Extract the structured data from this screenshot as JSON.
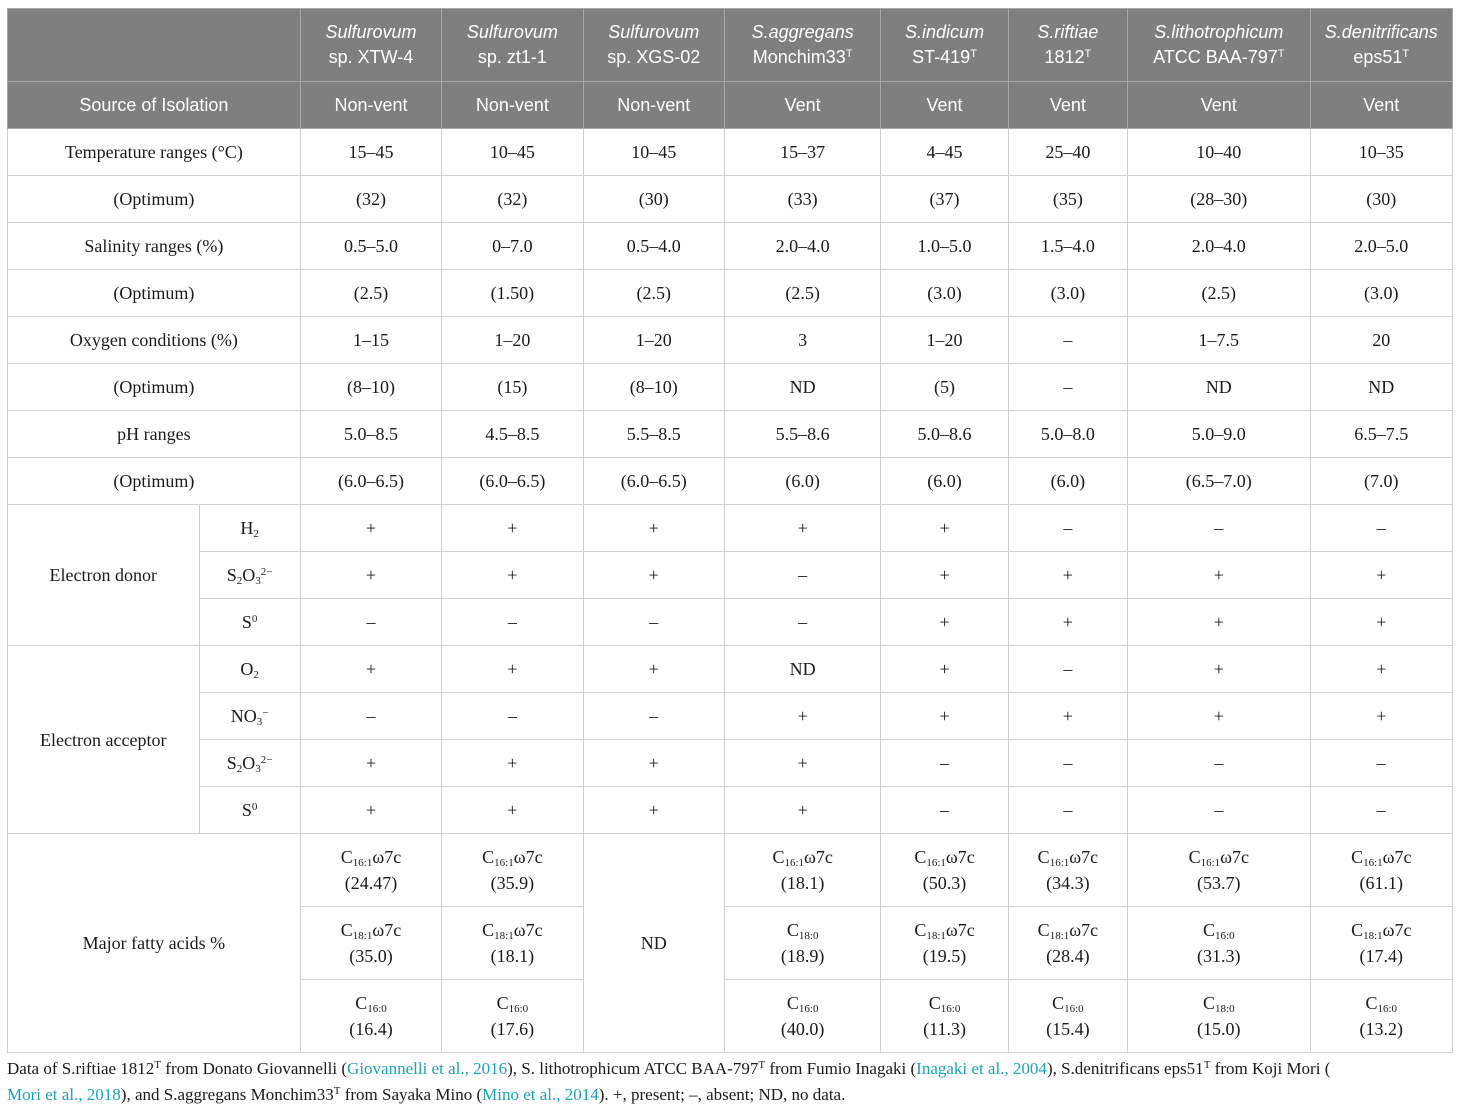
{
  "table": {
    "header": {
      "species": [
        {
          "name": "Sulfurovum",
          "strain": "sp. XTW-4",
          "sup": "",
          "italic_name": true
        },
        {
          "name": "Sulfurovum",
          "strain": "sp. zt1-1",
          "sup": "",
          "italic_name": true
        },
        {
          "name": "Sulfurovum",
          "strain": "sp. XGS-02",
          "sup": "",
          "italic_name": true
        },
        {
          "name": "S.aggregans",
          "strain": "Monchim33",
          "sup": "T",
          "italic_name": true
        },
        {
          "name": "S.indicum",
          "strain": "ST-419",
          "sup": "T",
          "italic_name": true
        },
        {
          "name": "S.riftiae",
          "strain": "1812",
          "sup": "T",
          "italic_name": true
        },
        {
          "name": "S.lithotrophicum",
          "strain": "ATCC BAA-797",
          "sup": "T",
          "italic_name": true
        },
        {
          "name": "S.denitrificans",
          "strain": "eps51",
          "sup": "T",
          "italic_name": true
        }
      ],
      "source_label": "Source of Isolation",
      "source_values": [
        "Non-vent",
        "Non-vent",
        "Non-vent",
        "Vent",
        "Vent",
        "Vent",
        "Vent",
        "Vent"
      ]
    },
    "rows": {
      "temp": {
        "label": "Temperature ranges (°C)",
        "values": [
          "15–45",
          "10–45",
          "10–45",
          "15–37",
          "4–45",
          "25–40",
          "10–40",
          "10–35"
        ]
      },
      "temp_opt": {
        "label": "(Optimum)",
        "values": [
          "(32)",
          "(32)",
          "(30)",
          "(33)",
          "(37)",
          "(35)",
          "(28–30)",
          "(30)"
        ]
      },
      "sal": {
        "label": "Salinity ranges (%)",
        "values": [
          "0.5–5.0",
          "0–7.0",
          "0.5–4.0",
          "2.0–4.0",
          "1.0–5.0",
          "1.5–4.0",
          "2.0–4.0",
          "2.0–5.0"
        ]
      },
      "sal_opt": {
        "label": "(Optimum)",
        "values": [
          "(2.5)",
          "(1.50)",
          "(2.5)",
          "(2.5)",
          "(3.0)",
          "(3.0)",
          "(2.5)",
          "(3.0)"
        ]
      },
      "oxy": {
        "label": "Oxygen conditions (%)",
        "values": [
          "1–15",
          "1–20",
          "1–20",
          "3",
          "1–20",
          "–",
          "1–7.5",
          "20"
        ]
      },
      "oxy_opt": {
        "label": "(Optimum)",
        "values": [
          "(8–10)",
          "(15)",
          "(8–10)",
          "ND",
          "(5)",
          "–",
          "ND",
          "ND"
        ]
      },
      "ph": {
        "label": "pH ranges",
        "values": [
          "5.0–8.5",
          "4.5–8.5",
          "5.5–8.5",
          "5.5–8.6",
          "5.0–8.6",
          "5.0–8.0",
          "5.0–9.0",
          "6.5–7.5"
        ]
      },
      "ph_opt": {
        "label": "(Optimum)",
        "values": [
          "(6.0–6.5)",
          "(6.0–6.5)",
          "(6.0–6.5)",
          "(6.0)",
          "(6.0)",
          "(6.0)",
          "(6.5–7.0)",
          "(7.0)"
        ]
      }
    },
    "donor": {
      "label": "Electron donor",
      "subs": [
        {
          "parts": [
            [
              "H",
              ""
            ],
            [
              "2",
              "sub"
            ]
          ],
          "values": [
            "+",
            "+",
            "+",
            "+",
            "+",
            "–",
            "–",
            "–"
          ]
        },
        {
          "parts": [
            [
              "S",
              ""
            ],
            [
              "2",
              "sub"
            ],
            [
              "O",
              ""
            ],
            [
              "3",
              "sub"
            ],
            [
              "2−",
              "sup"
            ]
          ],
          "values": [
            "+",
            "+",
            "+",
            "–",
            "+",
            "+",
            "+",
            "+"
          ]
        },
        {
          "parts": [
            [
              "S",
              ""
            ],
            [
              "0",
              "sup"
            ]
          ],
          "values": [
            "–",
            "–",
            "–",
            "–",
            "+",
            "+",
            "+",
            "+"
          ]
        }
      ]
    },
    "acceptor": {
      "label": "Electron acceptor",
      "subs": [
        {
          "parts": [
            [
              "O",
              ""
            ],
            [
              "2",
              "sub"
            ]
          ],
          "values": [
            "+",
            "+",
            "+",
            "ND",
            "+",
            "–",
            "+",
            "+"
          ]
        },
        {
          "parts": [
            [
              "NO",
              ""
            ],
            [
              "3",
              "sub"
            ],
            [
              "−",
              "sup"
            ]
          ],
          "values": [
            "–",
            "–",
            "–",
            "+",
            "+",
            "+",
            "+",
            "+"
          ]
        },
        {
          "parts": [
            [
              "S",
              ""
            ],
            [
              "2",
              "sub"
            ],
            [
              "O",
              ""
            ],
            [
              "3",
              "sub"
            ],
            [
              "2−",
              "sup"
            ]
          ],
          "values": [
            "+",
            "+",
            "+",
            "+",
            "–",
            "–",
            "–",
            "–"
          ]
        },
        {
          "parts": [
            [
              "S",
              ""
            ],
            [
              "0",
              "sup"
            ]
          ],
          "values": [
            "+",
            "+",
            "+",
            "+",
            "–",
            "–",
            "–",
            "–"
          ]
        }
      ]
    },
    "fatty": {
      "label": "Major fatty acids %",
      "nd": "ND",
      "cols": [
        [
          {
            "c": "16:1",
            "suffix": "ω7c",
            "v": "(24.47)"
          },
          {
            "c": "18:1",
            "suffix": "ω7c",
            "v": "(35.0)"
          },
          {
            "c": "16:0",
            "suffix": "",
            "v": "(16.4)"
          }
        ],
        [
          {
            "c": "16:1",
            "suffix": "ω7c",
            "v": "(35.9)"
          },
          {
            "c": "18:1",
            "suffix": "ω7c",
            "v": "(18.1)"
          },
          {
            "c": "16:0",
            "suffix": "",
            "v": "(17.6)"
          }
        ],
        null,
        [
          {
            "c": "16:1",
            "suffix": "ω7c",
            "v": "(18.1)"
          },
          {
            "c": "18:0",
            "suffix": "",
            "v": "(18.9)"
          },
          {
            "c": "16:0",
            "suffix": "",
            "v": "(40.0)"
          }
        ],
        [
          {
            "c": "16:1",
            "suffix": "ω7c",
            "v": "(50.3)"
          },
          {
            "c": "18:1",
            "suffix": "ω7c",
            "v": "(19.5)"
          },
          {
            "c": "16:0",
            "suffix": "",
            "v": "(11.3)"
          }
        ],
        [
          {
            "c": "16:1",
            "suffix": "ω7c",
            "v": "(34.3)"
          },
          {
            "c": "18:1",
            "suffix": "ω7c",
            "v": "(28.4)"
          },
          {
            "c": "16:0",
            "suffix": "",
            "v": "(15.4)"
          }
        ],
        [
          {
            "c": "16:1",
            "suffix": "ω7c",
            "v": "(53.7)"
          },
          {
            "c": "16:0",
            "suffix": "",
            "v": "(31.3)"
          },
          {
            "c": "18:0",
            "suffix": "",
            "v": "(15.0)"
          }
        ],
        [
          {
            "c": "16:1",
            "suffix": "ω7c",
            "v": "(61.1)"
          },
          {
            "c": "18:1",
            "suffix": "ω7c",
            "v": "(17.4)"
          },
          {
            "c": "16:0",
            "suffix": "",
            "v": "(13.2)"
          }
        ]
      ]
    }
  },
  "footnote": {
    "t1": "Data of S.riftiae 1812",
    "sup1": "T",
    "t2": " from Donato Giovannelli (",
    "l1": "Giovannelli et al., 2016",
    "t3": "), S. lithotrophicum ATCC BAA-797",
    "sup2": "T",
    "t4": " from Fumio Inagaki (",
    "l2": "Inagaki et al., 2004",
    "t5": "), S.denitrificans eps51",
    "sup3": "T",
    "t6": " from Koji Mori (",
    "l3": "Mori et al., 2018",
    "t7": "), and S.aggregans Monchim33",
    "sup4": "T",
    "t8": " from Sayaka Mino (",
    "l4": "Mino et al., 2014",
    "t9": "). +, present; –, absent; ND, no data.",
    "link_color": "#1aa3b8"
  }
}
